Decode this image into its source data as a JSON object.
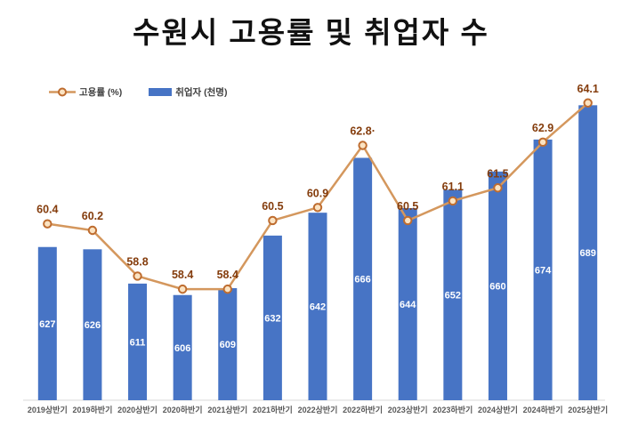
{
  "title": "수원시 고용률 및 취업자 수",
  "legend": {
    "position": "top-left",
    "items": [
      {
        "label": "고용률 (%)",
        "swatch": "orange-line-circle-marker"
      },
      {
        "label": "취업자 (천명)",
        "swatch": "blue-bar"
      }
    ]
  },
  "colors": {
    "bar": "#4774C5",
    "line": "#D4975D",
    "marker_ring": "#BE6C2F",
    "marker_fill": "#FBE3C2",
    "line_label": "#843C0C",
    "bar_label": "#FFFFFF",
    "axis_line": "#D9D9D9",
    "tick_label": "#595959",
    "title": "#111111"
  },
  "chart_data": {
    "type": "bar",
    "subtype": "bar+line-combo",
    "title": "수원시 고용률 및 취업자 수",
    "grid": false,
    "legend_position": "top-left",
    "categories": [
      "2019상반기",
      "2019하반기",
      "2020상반기",
      "2020하반기",
      "2021상반기",
      "2021하반기",
      "2022상반기",
      "2022하반기",
      "2023상반기",
      "2023하반기",
      "2024상반기",
      "2024하반기",
      "2025상반기"
    ],
    "series": [
      {
        "name": "고용률 (%)",
        "type": "line",
        "axis": "secondary",
        "values": [
          60.4,
          60.2,
          58.8,
          58.4,
          58.4,
          60.5,
          60.9,
          62.8,
          60.5,
          61.1,
          61.5,
          62.9,
          64.1
        ],
        "labels": [
          "60.4",
          "60.2",
          "58.8",
          "58.4",
          "58.4",
          "60.5",
          "60.9",
          "62.8·",
          "60.5",
          "61.1",
          "61.5",
          "62.9",
          "64.1"
        ],
        "ylim_hint": [
          55,
          66
        ]
      },
      {
        "name": "취업자 (천명)",
        "type": "bar",
        "axis": "primary",
        "values": [
          627,
          626,
          611,
          606,
          609,
          632,
          642,
          666,
          644,
          652,
          660,
          674,
          689
        ],
        "labels": [
          "627",
          "626",
          "611",
          "606",
          "609",
          "632",
          "642",
          "666",
          "644",
          "652",
          "660",
          "674",
          "689"
        ],
        "ylim_hint": [
          560,
          717
        ]
      }
    ],
    "xlabel": "",
    "ylabel": ""
  }
}
